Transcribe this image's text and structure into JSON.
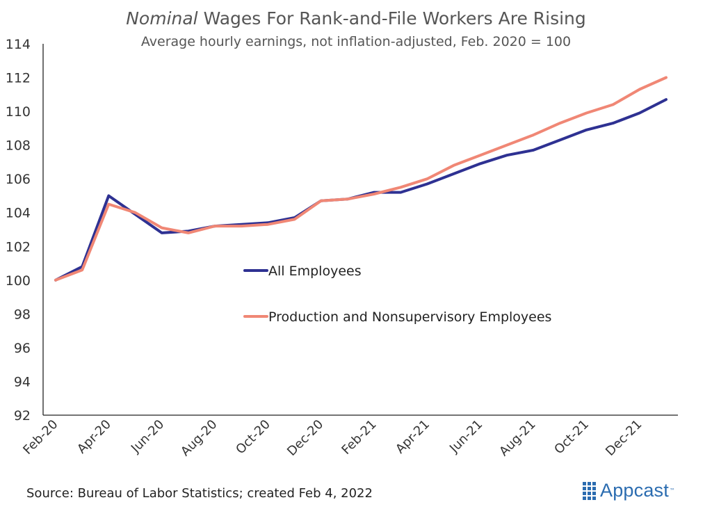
{
  "title": {
    "italic": "Nominal",
    "rest": "Wages For Rank-and-File Workers Are Rising"
  },
  "subtitle": "Average hourly earnings, not inflation-adjusted, Feb. 2020 = 100",
  "source": "Source: Bureau of Labor Statistics; created Feb 4, 2022",
  "logo": {
    "text": "Appcast",
    "tm": "™"
  },
  "colors": {
    "all_employees": "#2e3192",
    "production": "#f08775",
    "axis": "#222222",
    "brand": "#2b6cb0"
  },
  "chart_data": {
    "type": "line",
    "title": "Nominal Wages For Rank-and-File Workers Are Rising",
    "subtitle": "Average hourly earnings, not inflation-adjusted, Feb. 2020 = 100",
    "x": [
      "Feb-20",
      "Mar-20",
      "Apr-20",
      "May-20",
      "Jun-20",
      "Jul-20",
      "Aug-20",
      "Sep-20",
      "Oct-20",
      "Nov-20",
      "Dec-20",
      "Jan-21",
      "Feb-21",
      "Mar-21",
      "Apr-21",
      "May-21",
      "Jun-21",
      "Jul-21",
      "Aug-21",
      "Sep-21",
      "Oct-21",
      "Nov-21",
      "Dec-21",
      "Jan-22"
    ],
    "xtick_labels": [
      "Feb-20",
      "Apr-20",
      "Jun-20",
      "Aug-20",
      "Oct-20",
      "Dec-20",
      "Feb-21",
      "Apr-21",
      "Jun-21",
      "Aug-21",
      "Oct-21",
      "Dec-21"
    ],
    "ylim": [
      92,
      114
    ],
    "yticks": [
      92,
      94,
      96,
      98,
      100,
      102,
      104,
      106,
      108,
      110,
      112,
      114
    ],
    "grid": false,
    "legend_position": "center",
    "series": [
      {
        "name": "All Employees",
        "values": [
          100,
          100.8,
          105.0,
          103.9,
          102.8,
          102.9,
          103.2,
          103.3,
          103.4,
          103.7,
          104.7,
          104.8,
          105.2,
          105.2,
          105.7,
          106.3,
          106.9,
          107.4,
          107.7,
          108.3,
          108.9,
          109.3,
          109.9,
          110.7
        ]
      },
      {
        "name": "Production and Nonsupervisory Employees",
        "values": [
          100,
          100.6,
          104.5,
          104.0,
          103.1,
          102.8,
          103.2,
          103.2,
          103.3,
          103.6,
          104.7,
          104.8,
          105.1,
          105.5,
          106.0,
          106.8,
          107.4,
          108.0,
          108.6,
          109.3,
          109.9,
          110.4,
          111.3,
          112.0
        ]
      }
    ]
  }
}
